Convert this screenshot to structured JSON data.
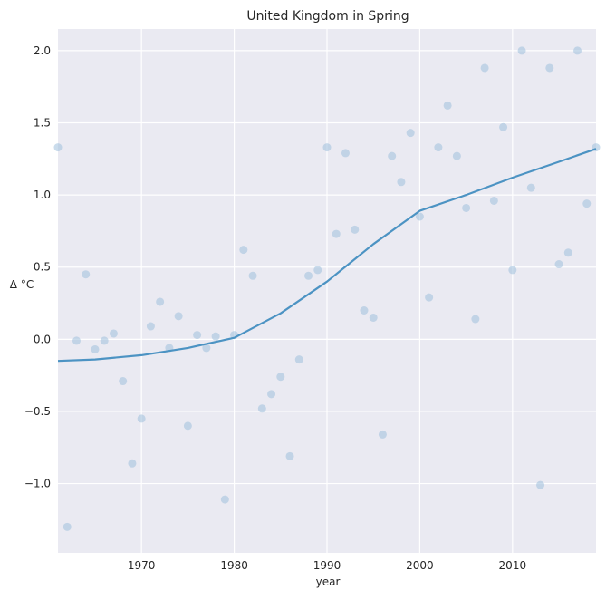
{
  "chart_data": {
    "type": "scatter",
    "title": "United Kingdom in Spring",
    "xlabel": "year",
    "ylabel": "Δ °C",
    "xlim": [
      1961,
      2019
    ],
    "ylim": [
      -1.48,
      2.15
    ],
    "xticks": [
      1970,
      1980,
      1990,
      2000,
      2010
    ],
    "xtick_labels": [
      "1970",
      "1980",
      "1990",
      "2000",
      "2010"
    ],
    "yticks": [
      -1.0,
      -0.5,
      0.0,
      0.5,
      1.0,
      1.5,
      2.0
    ],
    "ytick_labels": [
      "−1.0",
      "−0.5",
      "0.0",
      "0.5",
      "1.0",
      "1.5",
      "2.0"
    ],
    "grid": true,
    "background_color": "#eaeaf2",
    "series": [
      {
        "kind": "scatter",
        "color": "#9ebfdc",
        "points": [
          [
            1961,
            1.33
          ],
          [
            1962,
            -1.3
          ],
          [
            1963,
            -0.01
          ],
          [
            1964,
            0.45
          ],
          [
            1965,
            -0.07
          ],
          [
            1966,
            -0.01
          ],
          [
            1967,
            0.04
          ],
          [
            1968,
            -0.29
          ],
          [
            1969,
            -0.86
          ],
          [
            1970,
            -0.55
          ],
          [
            1971,
            0.09
          ],
          [
            1972,
            0.26
          ],
          [
            1973,
            -0.06
          ],
          [
            1974,
            0.16
          ],
          [
            1975,
            -0.6
          ],
          [
            1976,
            0.03
          ],
          [
            1977,
            -0.06
          ],
          [
            1978,
            0.02
          ],
          [
            1979,
            -1.11
          ],
          [
            1980,
            0.03
          ],
          [
            1981,
            0.62
          ],
          [
            1982,
            0.44
          ],
          [
            1983,
            -0.48
          ],
          [
            1984,
            -0.38
          ],
          [
            1985,
            -0.26
          ],
          [
            1986,
            -0.81
          ],
          [
            1987,
            -0.14
          ],
          [
            1988,
            0.44
          ],
          [
            1989,
            0.48
          ],
          [
            1990,
            1.33
          ],
          [
            1991,
            0.73
          ],
          [
            1992,
            1.29
          ],
          [
            1993,
            0.76
          ],
          [
            1994,
            0.2
          ],
          [
            1995,
            0.15
          ],
          [
            1996,
            -0.66
          ],
          [
            1997,
            1.27
          ],
          [
            1998,
            1.09
          ],
          [
            1999,
            1.43
          ],
          [
            2000,
            0.85
          ],
          [
            2001,
            0.29
          ],
          [
            2002,
            1.33
          ],
          [
            2003,
            1.62
          ],
          [
            2004,
            1.27
          ],
          [
            2005,
            0.91
          ],
          [
            2006,
            0.14
          ],
          [
            2007,
            1.88
          ],
          [
            2008,
            0.96
          ],
          [
            2009,
            1.47
          ],
          [
            2010,
            0.48
          ],
          [
            2011,
            2.0
          ],
          [
            2012,
            1.05
          ],
          [
            2013,
            -1.01
          ],
          [
            2014,
            1.88
          ],
          [
            2015,
            0.52
          ],
          [
            2016,
            0.6
          ],
          [
            2017,
            2.0
          ],
          [
            2018,
            0.94
          ],
          [
            2019,
            1.33
          ]
        ]
      },
      {
        "kind": "line",
        "color": "#4c93c3",
        "points": [
          [
            1961,
            -0.15
          ],
          [
            1965,
            -0.14
          ],
          [
            1970,
            -0.11
          ],
          [
            1975,
            -0.06
          ],
          [
            1980,
            0.01
          ],
          [
            1985,
            0.18
          ],
          [
            1990,
            0.4
          ],
          [
            1995,
            0.66
          ],
          [
            2000,
            0.89
          ],
          [
            2005,
            1.0
          ],
          [
            2010,
            1.12
          ],
          [
            2015,
            1.23
          ],
          [
            2019,
            1.32
          ]
        ]
      }
    ]
  }
}
